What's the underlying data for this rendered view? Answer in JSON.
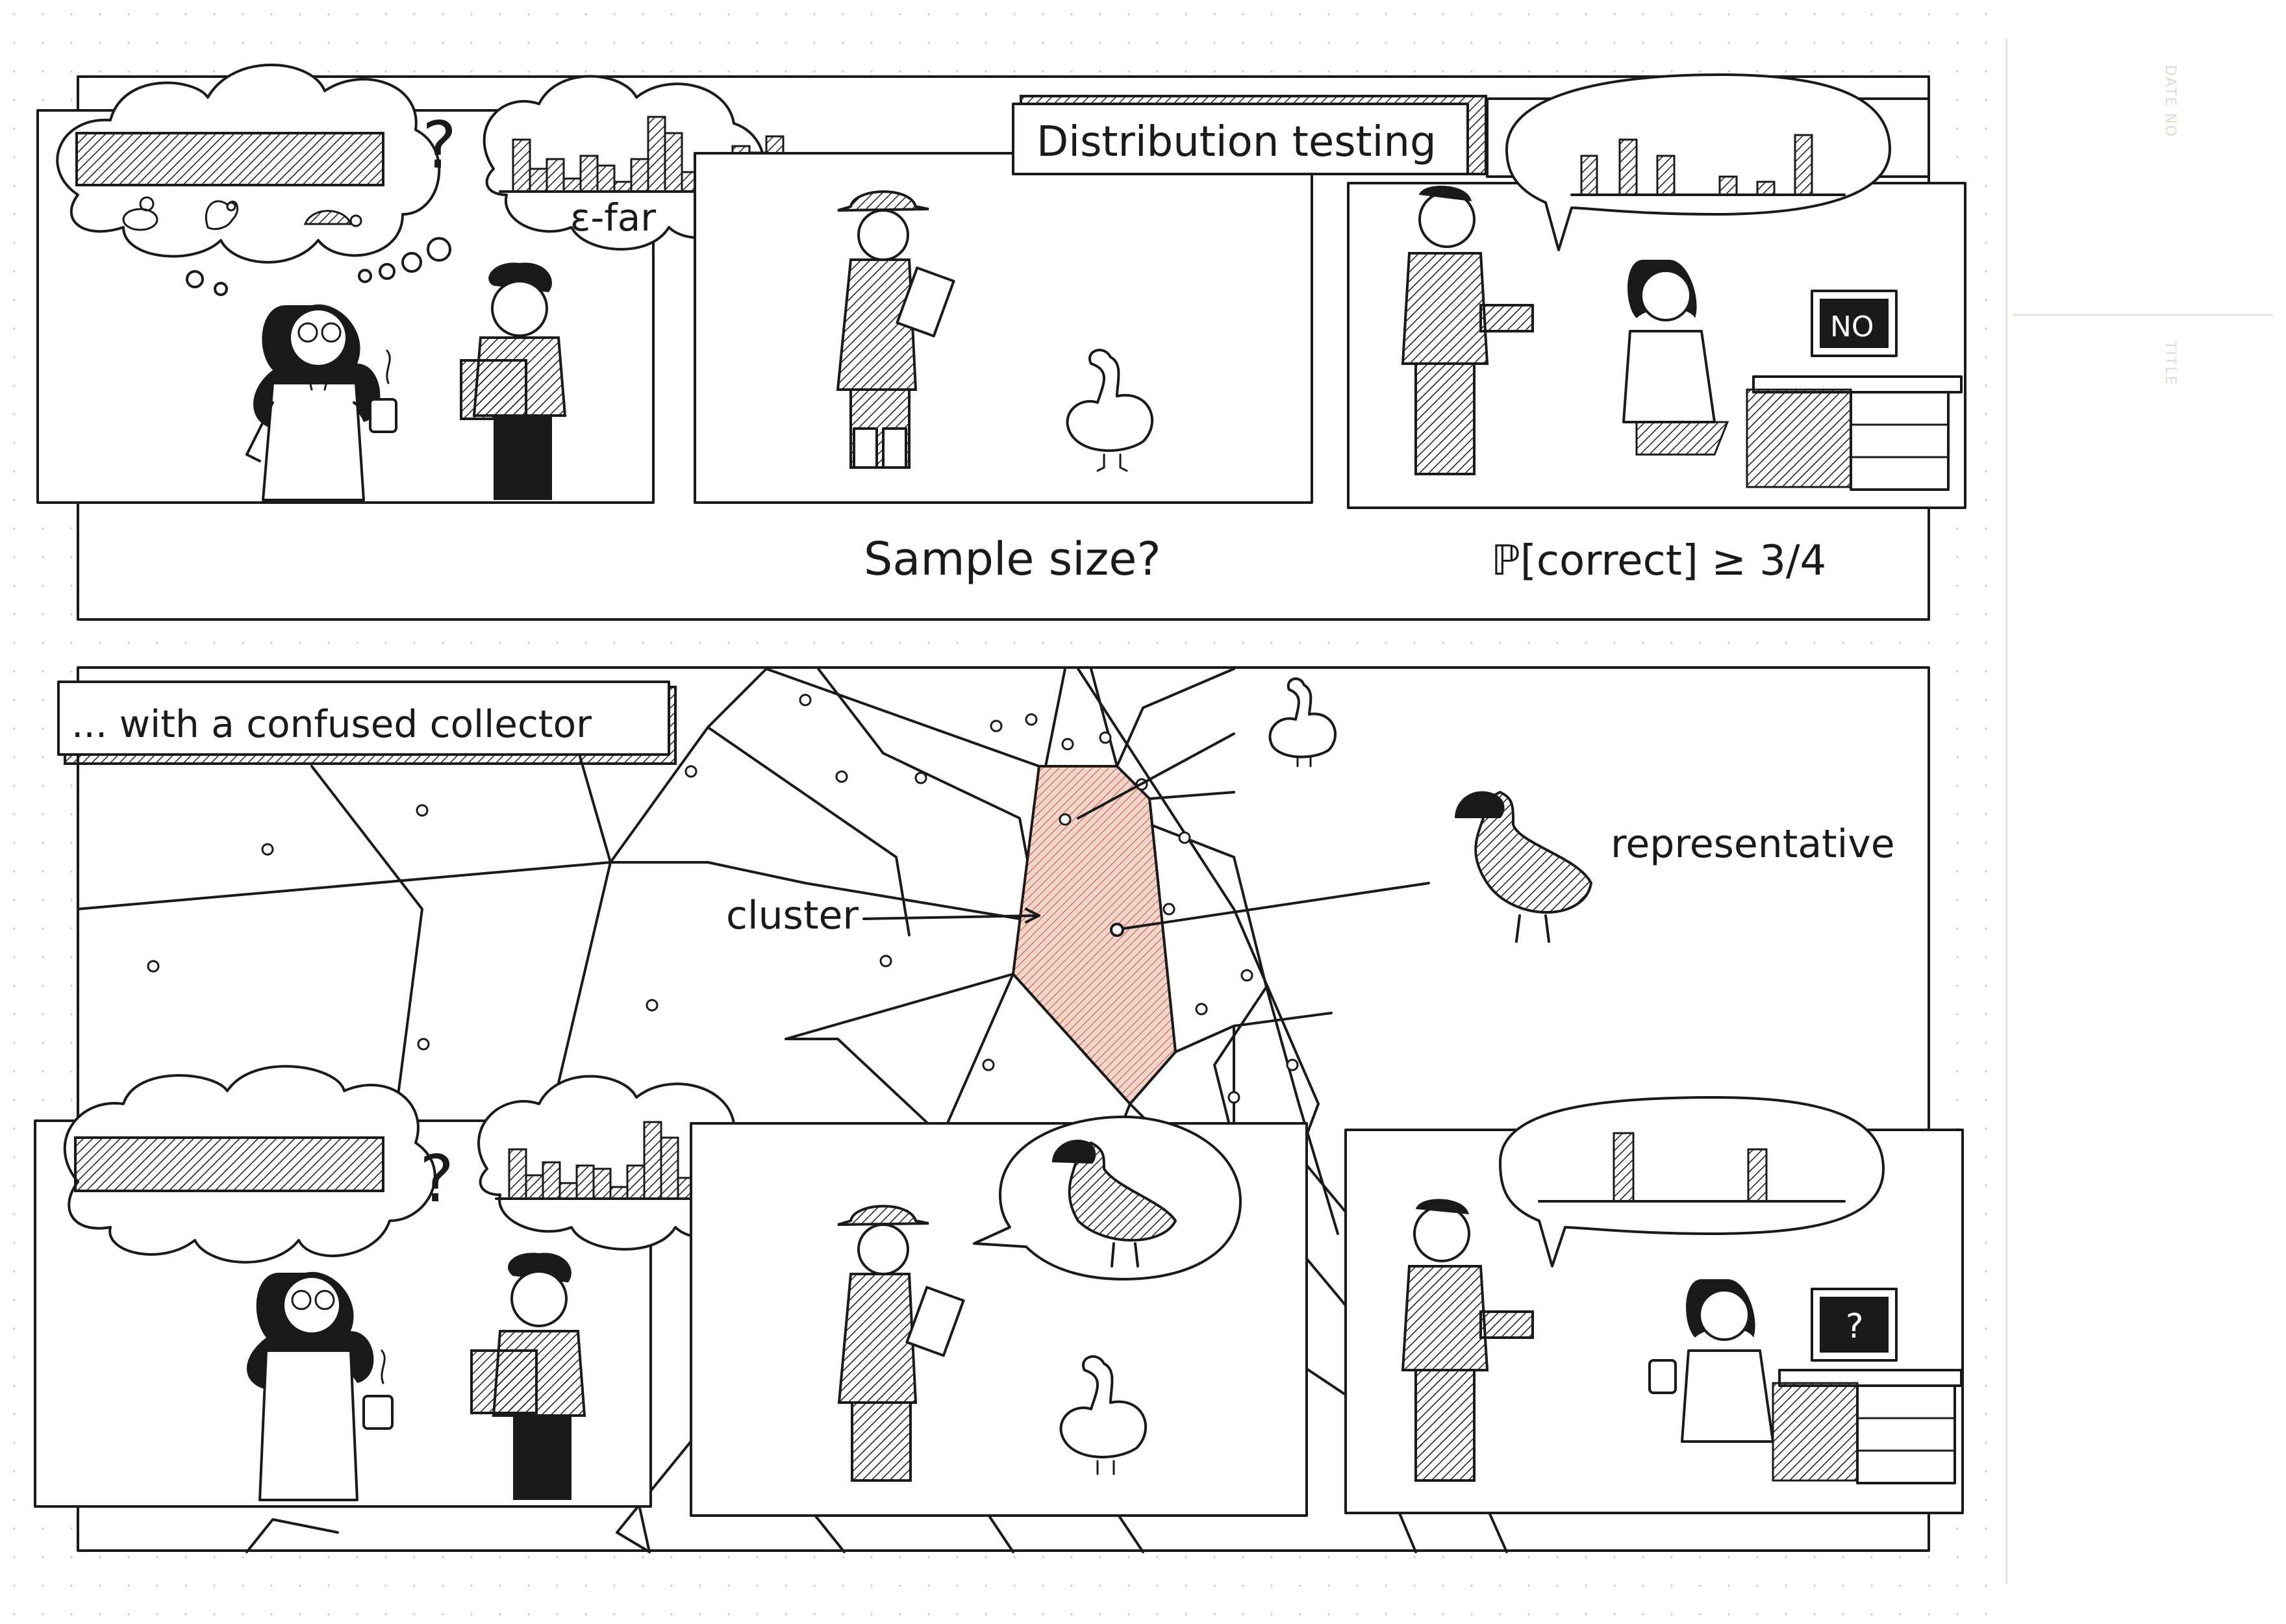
{
  "colors": {
    "ink": "#1a1a1a",
    "paper": "#ffffff",
    "cluster_fill": "#e7b3a3",
    "dot_grid": "#c8c8c8",
    "margin_print": "#dcdccf"
  },
  "margin": {
    "date_no": "DATE NO",
    "title": "TITLE"
  },
  "top_strip": {
    "title": "Distribution testing",
    "eps_far": "ε-far",
    "question_mark": "?",
    "caption_sample": "Sample size?",
    "caption_prob": "ℙ[correct] ≥ 3/4",
    "monitor_text": "NO",
    "thought_icons": [
      "duck-icon",
      "squirrel-icon",
      "turtle-icon"
    ]
  },
  "voronoi_section": {
    "title": "... with a confused collector",
    "label_cluster": "cluster",
    "label_representative": "representative",
    "sites": [
      1,
      2,
      3,
      4,
      5,
      6,
      7,
      8,
      9,
      10,
      11,
      12,
      13,
      14,
      15,
      16,
      17,
      18,
      19,
      20,
      21,
      22,
      23,
      24,
      25,
      26
    ]
  },
  "bottom_strip": {
    "question_mark": "?",
    "monitor_text": "?"
  }
}
